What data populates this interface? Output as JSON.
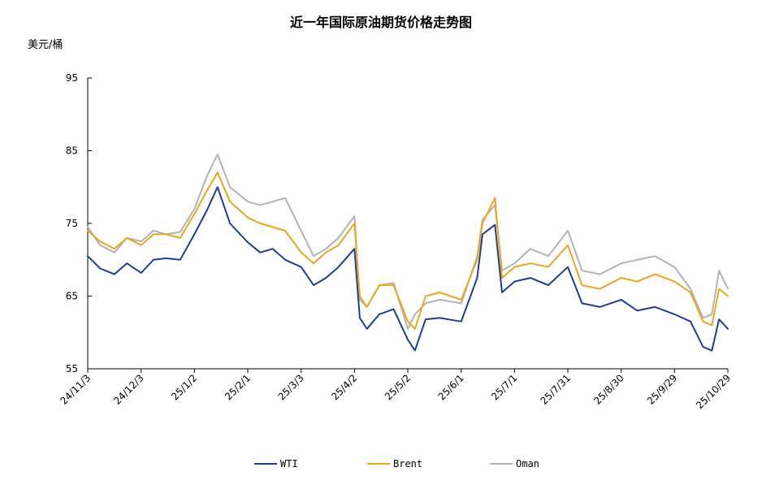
{
  "chart_data": {
    "type": "line",
    "title": "近一年国际原油期货价格走势图",
    "ylabel": "美元/桶",
    "xlabel": "",
    "ylim": [
      55,
      95
    ],
    "yticks": [
      55,
      65,
      75,
      85,
      95
    ],
    "xtick_labels": [
      "24/11/3",
      "24/12/3",
      "25/1/2",
      "25/2/1",
      "25/3/3",
      "25/4/2",
      "25/5/2",
      "25/6/1",
      "25/7/1",
      "25/7/31",
      "25/8/30",
      "25/9/29",
      "25/10/29"
    ],
    "x": [
      "24/11/3",
      "24/11/10",
      "24/11/18",
      "24/11/25",
      "24/12/3",
      "24/12/10",
      "24/12/17",
      "24/12/25",
      "25/1/2",
      "25/1/9",
      "25/1/15",
      "25/1/22",
      "25/2/1",
      "25/2/8",
      "25/2/15",
      "25/2/22",
      "25/3/3",
      "25/3/10",
      "25/3/17",
      "25/3/24",
      "25/4/2",
      "25/4/5",
      "25/4/9",
      "25/4/16",
      "25/4/24",
      "25/5/2",
      "25/5/6",
      "25/5/12",
      "25/5/20",
      "25/6/1",
      "25/6/10",
      "25/6/13",
      "25/6/20",
      "25/6/24",
      "25/7/1",
      "25/7/10",
      "25/7/20",
      "25/7/31",
      "25/8/8",
      "25/8/18",
      "25/8/30",
      "25/9/8",
      "25/9/18",
      "25/9/29",
      "25/10/8",
      "25/10/15",
      "25/10/20",
      "25/10/24",
      "25/10/29"
    ],
    "series": [
      {
        "name": "WTI",
        "color": "#1f3e8f",
        "values": [
          70.5,
          68.8,
          68.0,
          69.5,
          68.2,
          70.0,
          70.2,
          70.0,
          73.5,
          76.8,
          80.0,
          75.0,
          72.4,
          71.0,
          71.5,
          70.0,
          69.0,
          66.5,
          67.5,
          69.0,
          71.5,
          62.0,
          60.5,
          62.5,
          63.2,
          59.0,
          57.5,
          61.8,
          62.0,
          61.5,
          67.5,
          73.5,
          74.8,
          65.5,
          67.0,
          67.5,
          66.5,
          69.0,
          64.0,
          63.5,
          64.5,
          63.0,
          63.5,
          62.5,
          61.5,
          58.0,
          57.5,
          61.8,
          60.5
        ]
      },
      {
        "name": "Brent",
        "color": "#e5a823",
        "values": [
          74.0,
          72.5,
          71.5,
          73.0,
          72.0,
          73.5,
          73.5,
          73.0,
          76.3,
          79.5,
          82.0,
          78.0,
          75.8,
          75.0,
          74.5,
          74.0,
          71.0,
          69.5,
          71.0,
          72.0,
          75.0,
          65.0,
          63.5,
          66.5,
          66.5,
          61.5,
          60.5,
          65.0,
          65.5,
          64.5,
          70.0,
          75.0,
          78.5,
          67.5,
          69.0,
          69.5,
          69.0,
          72.0,
          66.5,
          66.0,
          67.5,
          67.0,
          68.0,
          67.0,
          65.5,
          61.5,
          61.0,
          66.0,
          65.0
        ]
      },
      {
        "name": "Oman",
        "color": "#b3b3b3",
        "values": [
          74.5,
          72.0,
          71.0,
          73.0,
          72.5,
          74.0,
          73.5,
          73.8,
          77.0,
          81.5,
          84.5,
          80.0,
          78.0,
          77.5,
          78.0,
          78.5,
          74.0,
          70.5,
          71.5,
          73.0,
          76.0,
          64.5,
          63.5,
          66.5,
          66.8,
          60.5,
          62.5,
          64.0,
          64.5,
          64.0,
          70.5,
          75.5,
          77.5,
          68.5,
          69.5,
          71.5,
          70.5,
          74.0,
          68.5,
          68.0,
          69.5,
          70.0,
          70.5,
          69.0,
          66.0,
          62.0,
          62.5,
          68.5,
          66.0
        ]
      }
    ],
    "legend_position": "bottom",
    "grid": false
  }
}
